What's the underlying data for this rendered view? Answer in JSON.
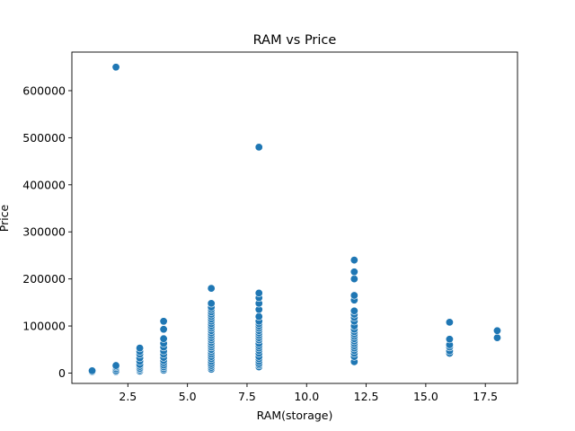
{
  "chart_data": {
    "type": "scatter",
    "title": "RAM vs Price",
    "xlabel": "RAM(storage)",
    "ylabel": "Price",
    "xlim": [
      0.15,
      18.85
    ],
    "ylim": [
      -22000,
      682000
    ],
    "xticks": [
      2.5,
      5.0,
      7.5,
      10.0,
      12.5,
      15.0,
      17.5
    ],
    "xtick_labels": [
      "2.5",
      "5.0",
      "7.5",
      "10.0",
      "12.5",
      "15.0",
      "17.5"
    ],
    "yticks": [
      0,
      100000,
      200000,
      300000,
      400000,
      500000,
      600000
    ],
    "ytick_labels": [
      "0",
      "100000",
      "200000",
      "300000",
      "400000",
      "500000",
      "600000"
    ],
    "grid": false,
    "marker_color": "#1f77b4",
    "marker_edge_color": "#ffffff",
    "points": [
      [
        1,
        3000
      ],
      [
        1,
        5000
      ],
      [
        2,
        650000
      ],
      [
        2,
        3000
      ],
      [
        2,
        5000
      ],
      [
        2,
        9000
      ],
      [
        2,
        13000
      ],
      [
        2,
        16000
      ],
      [
        3,
        4000
      ],
      [
        3,
        7000
      ],
      [
        3,
        10000
      ],
      [
        3,
        14000
      ],
      [
        3,
        18000
      ],
      [
        3,
        25000
      ],
      [
        3,
        32000
      ],
      [
        3,
        40000
      ],
      [
        3,
        46000
      ],
      [
        3,
        53000
      ],
      [
        4,
        6000
      ],
      [
        4,
        9000
      ],
      [
        4,
        13000
      ],
      [
        4,
        17000
      ],
      [
        4,
        22000
      ],
      [
        4,
        27000
      ],
      [
        4,
        33000
      ],
      [
        4,
        40000
      ],
      [
        4,
        47000
      ],
      [
        4,
        55000
      ],
      [
        4,
        63000
      ],
      [
        4,
        73000
      ],
      [
        4,
        93000
      ],
      [
        4,
        110000
      ],
      [
        6,
        8000
      ],
      [
        6,
        12000
      ],
      [
        6,
        16000
      ],
      [
        6,
        20000
      ],
      [
        6,
        25000
      ],
      [
        6,
        30000
      ],
      [
        6,
        35000
      ],
      [
        6,
        40000
      ],
      [
        6,
        45000
      ],
      [
        6,
        50000
      ],
      [
        6,
        55000
      ],
      [
        6,
        60000
      ],
      [
        6,
        65000
      ],
      [
        6,
        70000
      ],
      [
        6,
        75000
      ],
      [
        6,
        80000
      ],
      [
        6,
        85000
      ],
      [
        6,
        90000
      ],
      [
        6,
        95000
      ],
      [
        6,
        100000
      ],
      [
        6,
        105000
      ],
      [
        6,
        110000
      ],
      [
        6,
        115000
      ],
      [
        6,
        120000
      ],
      [
        6,
        125000
      ],
      [
        6,
        130000
      ],
      [
        6,
        135000
      ],
      [
        6,
        140000
      ],
      [
        6,
        148000
      ],
      [
        6,
        180000
      ],
      [
        8,
        480000
      ],
      [
        8,
        13000
      ],
      [
        8,
        17000
      ],
      [
        8,
        20000
      ],
      [
        8,
        25000
      ],
      [
        8,
        30000
      ],
      [
        8,
        35000
      ],
      [
        8,
        42000
      ],
      [
        8,
        48000
      ],
      [
        8,
        53000
      ],
      [
        8,
        58000
      ],
      [
        8,
        63000
      ],
      [
        8,
        70000
      ],
      [
        8,
        75000
      ],
      [
        8,
        80000
      ],
      [
        8,
        85000
      ],
      [
        8,
        90000
      ],
      [
        8,
        95000
      ],
      [
        8,
        100000
      ],
      [
        8,
        105000
      ],
      [
        8,
        110000
      ],
      [
        8,
        120000
      ],
      [
        8,
        135000
      ],
      [
        8,
        148000
      ],
      [
        8,
        160000
      ],
      [
        8,
        170000
      ],
      [
        12,
        24000
      ],
      [
        12,
        35000
      ],
      [
        12,
        42000
      ],
      [
        12,
        48000
      ],
      [
        12,
        53000
      ],
      [
        12,
        58000
      ],
      [
        12,
        63000
      ],
      [
        12,
        68000
      ],
      [
        12,
        73000
      ],
      [
        12,
        78000
      ],
      [
        12,
        83000
      ],
      [
        12,
        88000
      ],
      [
        12,
        93000
      ],
      [
        12,
        100000
      ],
      [
        12,
        110000
      ],
      [
        12,
        118000
      ],
      [
        12,
        125000
      ],
      [
        12,
        132000
      ],
      [
        12,
        155000
      ],
      [
        12,
        165000
      ],
      [
        12,
        200000
      ],
      [
        12,
        215000
      ],
      [
        12,
        240000
      ],
      [
        16,
        42000
      ],
      [
        16,
        47000
      ],
      [
        16,
        55000
      ],
      [
        16,
        60000
      ],
      [
        16,
        72000
      ],
      [
        16,
        108000
      ],
      [
        18,
        75000
      ],
      [
        18,
        90000
      ]
    ]
  }
}
